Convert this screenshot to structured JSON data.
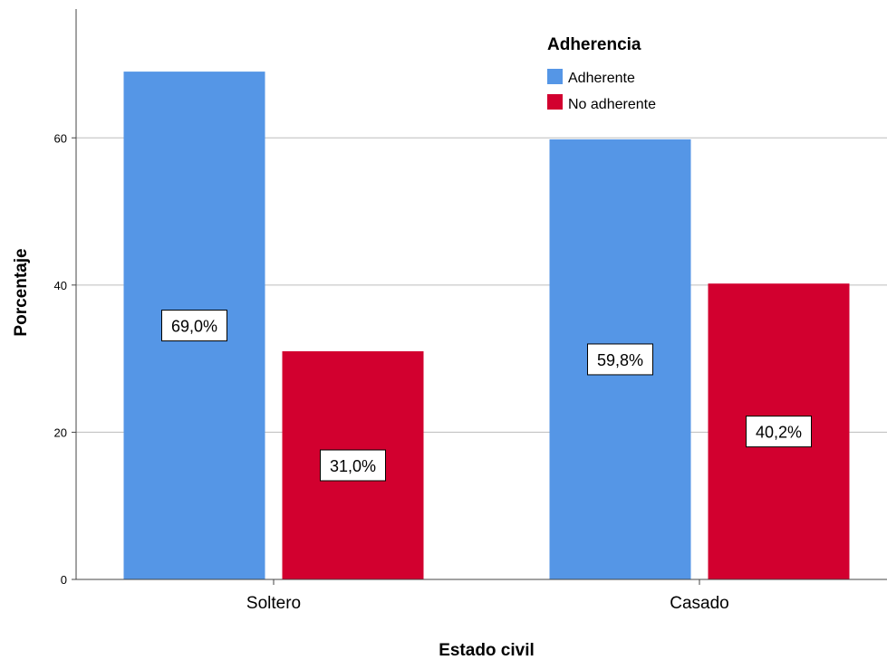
{
  "chart_data": {
    "type": "bar",
    "categories": [
      "Soltero",
      "Casado"
    ],
    "series": [
      {
        "name": "Adherente",
        "values": [
          69.0,
          59.8
        ],
        "labels": [
          "69,0%",
          "59,8%"
        ],
        "color": "#5596E6"
      },
      {
        "name": "No adherente",
        "values": [
          31.0,
          40.2
        ],
        "labels": [
          "31,0%",
          "40,2%"
        ],
        "color": "#D2002F"
      }
    ],
    "xlabel": "Estado civil",
    "ylabel": "Porcentaje",
    "ylim": [
      0,
      77.5
    ],
    "yticks": [
      0,
      20,
      40,
      60
    ],
    "ytick_labels": [
      "0",
      "20",
      "40",
      "60"
    ],
    "legend": {
      "title": "Adherencia",
      "position": "top-right"
    },
    "grid": true
  }
}
